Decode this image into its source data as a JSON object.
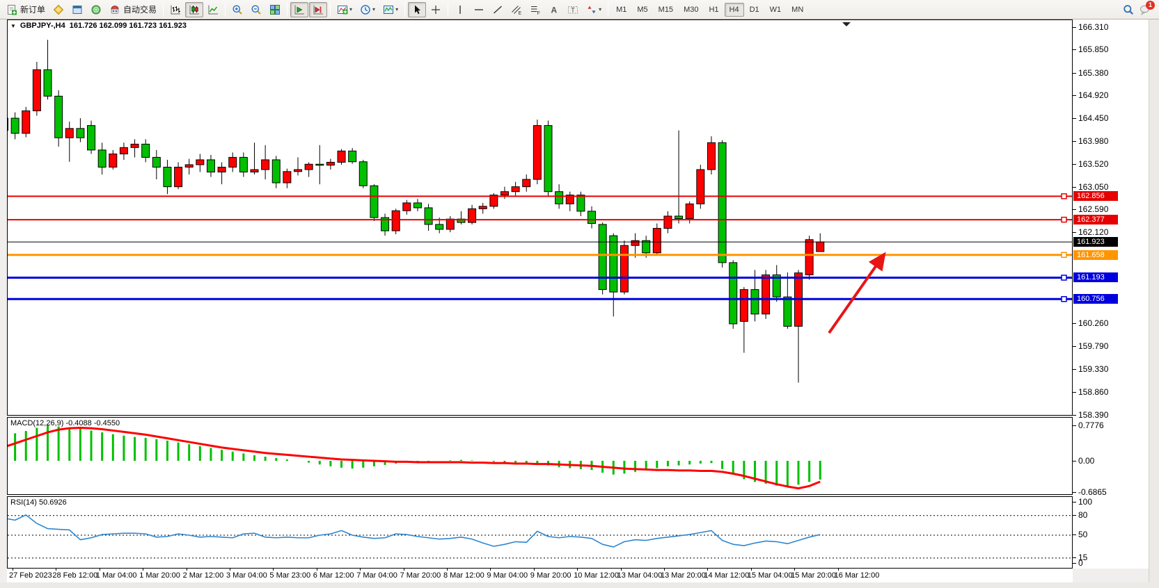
{
  "toolbar": {
    "new_order": "新订单",
    "auto_trading": "自动交易",
    "timeframes": [
      {
        "label": "M1"
      },
      {
        "label": "M5"
      },
      {
        "label": "M15"
      },
      {
        "label": "M30"
      },
      {
        "label": "H1"
      },
      {
        "label": "H4",
        "active": true
      },
      {
        "label": "D1"
      },
      {
        "label": "W1"
      },
      {
        "label": "MN"
      }
    ],
    "notification_badge": "1"
  },
  "header": {
    "symbol_period": "GBPJPY-,H4",
    "ohlc": "161.726 162.099 161.723 161.923"
  },
  "price_axis": {
    "ticks": [
      {
        "label": "166.310",
        "value": 166.31
      },
      {
        "label": "165.850",
        "value": 165.85
      },
      {
        "label": "165.380",
        "value": 165.38
      },
      {
        "label": "164.920",
        "value": 164.92
      },
      {
        "label": "164.450",
        "value": 164.45
      },
      {
        "label": "163.980",
        "value": 163.98
      },
      {
        "label": "163.520",
        "value": 163.52
      },
      {
        "label": "163.050",
        "value": 163.05
      },
      {
        "label": "162.590",
        "value": 162.59
      },
      {
        "label": "162.120",
        "value": 162.12
      },
      {
        "label": "160.260",
        "value": 160.26
      },
      {
        "label": "159.790",
        "value": 159.79
      },
      {
        "label": "159.330",
        "value": 159.33
      },
      {
        "label": "158.860",
        "value": 158.86
      },
      {
        "label": "158.390",
        "value": 158.39
      }
    ],
    "tags": [
      {
        "label": "162.856",
        "value": 162.856,
        "color": "#e60000"
      },
      {
        "label": "162.377",
        "value": 162.377,
        "color": "#e60000"
      },
      {
        "label": "161.923",
        "value": 161.923,
        "color": "#000000"
      },
      {
        "label": "161.658",
        "value": 161.658,
        "color": "#ff9500"
      },
      {
        "label": "161.193",
        "value": 161.193,
        "color": "#0000dd"
      },
      {
        "label": "160.756",
        "value": 160.756,
        "color": "#0000dd"
      }
    ]
  },
  "time_axis": {
    "labels": [
      "27 Feb 2023",
      "28 Feb 12:00",
      "1 Mar 04:00",
      "1 Mar 20:00",
      "2 Mar 12:00",
      "3 Mar 04:00",
      "5 Mar 23:00",
      "6 Mar 12:00",
      "7 Mar 04:00",
      "7 Mar 20:00",
      "8 Mar 12:00",
      "9 Mar 04:00",
      "9 Mar 20:00",
      "10 Mar 12:00",
      "13 Mar 04:00",
      "13 Mar 20:00",
      "14 Mar 12:00",
      "15 Mar 04:00",
      "15 Mar 20:00",
      "16 Mar 12:00"
    ]
  },
  "chart_data": [
    {
      "type": "candlestick",
      "title": "GBPJPY-,H4",
      "ohlc_current": {
        "open": 161.726,
        "high": 162.099,
        "low": 161.723,
        "close": 161.923
      },
      "ylim": [
        158.39,
        166.31
      ],
      "bull_color": "#ff0000",
      "bear_color": "#00c000",
      "candles": [
        [
          164.2,
          164.55,
          164.08,
          164.45
        ],
        [
          164.45,
          164.57,
          164.02,
          164.14
        ],
        [
          164.14,
          164.68,
          164.06,
          164.6
        ],
        [
          164.6,
          165.6,
          164.5,
          165.44
        ],
        [
          165.44,
          166.05,
          164.83,
          164.9
        ],
        [
          164.9,
          165.02,
          163.87,
          164.05
        ],
        [
          164.05,
          164.38,
          163.56,
          164.24
        ],
        [
          164.24,
          164.45,
          163.96,
          164.05
        ],
        [
          164.3,
          164.4,
          163.72,
          163.8
        ],
        [
          163.8,
          163.95,
          163.3,
          163.45
        ],
        [
          163.45,
          163.8,
          163.4,
          163.72
        ],
        [
          163.72,
          163.95,
          163.6,
          163.85
        ],
        [
          163.85,
          164.02,
          163.65,
          163.92
        ],
        [
          163.92,
          164.02,
          163.55,
          163.65
        ],
        [
          163.65,
          163.8,
          163.2,
          163.45
        ],
        [
          163.45,
          163.6,
          162.9,
          163.05
        ],
        [
          163.05,
          163.55,
          163.0,
          163.45
        ],
        [
          163.45,
          163.62,
          163.3,
          163.5
        ],
        [
          163.5,
          163.72,
          163.35,
          163.6
        ],
        [
          163.6,
          163.7,
          163.25,
          163.35
        ],
        [
          163.35,
          163.55,
          163.1,
          163.45
        ],
        [
          163.45,
          163.75,
          163.35,
          163.65
        ],
        [
          163.65,
          163.75,
          163.25,
          163.35
        ],
        [
          163.35,
          163.95,
          163.3,
          163.4
        ],
        [
          163.4,
          163.9,
          163.2,
          163.6
        ],
        [
          163.6,
          163.68,
          163.02,
          163.13
        ],
        [
          163.13,
          163.42,
          163.02,
          163.36
        ],
        [
          163.36,
          163.65,
          163.28,
          163.4
        ],
        [
          163.4,
          163.55,
          163.25,
          163.51
        ],
        [
          163.51,
          163.9,
          163.1,
          163.49
        ],
        [
          163.49,
          163.62,
          163.4,
          163.55
        ],
        [
          163.55,
          163.82,
          163.5,
          163.78
        ],
        [
          163.78,
          163.84,
          163.52,
          163.56
        ],
        [
          163.56,
          163.6,
          163.02,
          163.07
        ],
        [
          163.07,
          163.1,
          162.35,
          162.42
        ],
        [
          162.42,
          162.5,
          162.05,
          162.15
        ],
        [
          162.15,
          162.6,
          162.08,
          162.56
        ],
        [
          162.56,
          162.78,
          162.48,
          162.72
        ],
        [
          162.72,
          162.8,
          162.55,
          162.62
        ],
        [
          162.62,
          162.7,
          162.15,
          162.28
        ],
        [
          162.28,
          162.42,
          162.1,
          162.18
        ],
        [
          162.18,
          162.45,
          162.12,
          162.39
        ],
        [
          162.39,
          162.55,
          162.28,
          162.32
        ],
        [
          162.32,
          162.68,
          162.28,
          162.6
        ],
        [
          162.6,
          162.72,
          162.5,
          162.65
        ],
        [
          162.65,
          162.92,
          162.6,
          162.88
        ],
        [
          162.88,
          163.05,
          162.8,
          162.95
        ],
        [
          162.95,
          163.15,
          162.85,
          163.05
        ],
        [
          163.05,
          163.3,
          162.95,
          163.2
        ],
        [
          163.2,
          164.42,
          163.1,
          164.3
        ],
        [
          164.3,
          164.4,
          162.85,
          162.95
        ],
        [
          162.95,
          163.1,
          162.6,
          162.7
        ],
        [
          162.7,
          162.95,
          162.55,
          162.88
        ],
        [
          162.88,
          162.95,
          162.45,
          162.55
        ],
        [
          162.55,
          162.65,
          162.2,
          162.3
        ],
        [
          162.28,
          162.32,
          160.85,
          160.95
        ],
        [
          162.05,
          162.1,
          160.4,
          160.9
        ],
        [
          160.9,
          161.95,
          160.85,
          161.85
        ],
        [
          161.85,
          162.1,
          161.6,
          161.95
        ],
        [
          161.95,
          162.05,
          161.6,
          161.7
        ],
        [
          161.7,
          162.3,
          161.65,
          162.2
        ],
        [
          162.2,
          162.55,
          162.1,
          162.45
        ],
        [
          162.45,
          164.2,
          162.3,
          162.4
        ],
        [
          162.4,
          162.75,
          162.3,
          162.7
        ],
        [
          162.7,
          163.5,
          162.6,
          163.4
        ],
        [
          163.4,
          164.08,
          163.3,
          163.95
        ],
        [
          163.95,
          164.0,
          161.4,
          161.5
        ],
        [
          161.5,
          161.55,
          160.15,
          160.25
        ],
        [
          160.3,
          161.0,
          159.66,
          160.95
        ],
        [
          160.95,
          161.35,
          160.3,
          160.45
        ],
        [
          160.45,
          161.35,
          160.35,
          161.25
        ],
        [
          161.25,
          161.45,
          160.7,
          160.8
        ],
        [
          160.8,
          161.3,
          160.15,
          160.2
        ],
        [
          160.2,
          161.35,
          159.05,
          161.29
        ],
        [
          161.25,
          162.05,
          161.15,
          161.97
        ],
        [
          161.726,
          162.099,
          161.723,
          161.923
        ]
      ],
      "hlines": [
        {
          "value": 162.856,
          "color": "#e60000",
          "width": 2,
          "handle": true
        },
        {
          "value": 162.377,
          "color": "#e60000",
          "width": 2,
          "handle": true
        },
        {
          "value": 161.923,
          "color": "#000000",
          "width": 1,
          "handle": false
        },
        {
          "value": 161.658,
          "color": "#ff9500",
          "width": 3,
          "handle": true
        },
        {
          "value": 161.193,
          "color": "#0000dd",
          "width": 3,
          "handle": true
        },
        {
          "value": 160.756,
          "color": "#0000dd",
          "width": 3,
          "handle": true
        }
      ],
      "annotations": [
        {
          "type": "arrow",
          "from": [
            1190,
            479
          ],
          "to": [
            1267,
            369
          ],
          "color": "#e81515",
          "width": 4
        }
      ]
    },
    {
      "type": "bar",
      "name": "MACD",
      "label": "MACD(12,26,9) -0.4088 -0.4550",
      "main_value": -0.4088,
      "signal_value": -0.455,
      "ylim": [
        -0.6865,
        0.7776
      ],
      "ticks": [
        {
          "label": "0.7776",
          "value": 0.7776
        },
        {
          "label": "0.00",
          "value": 0
        },
        {
          "label": "-0.6865",
          "value": -0.6865
        }
      ],
      "histogram_color": "#00c000",
      "signal_color": "#ff0000",
      "values": [
        0.55,
        0.6,
        0.65,
        0.72,
        0.78,
        0.75,
        0.72,
        0.7,
        0.66,
        0.62,
        0.58,
        0.55,
        0.52,
        0.5,
        0.47,
        0.44,
        0.4,
        0.36,
        0.32,
        0.28,
        0.24,
        0.2,
        0.16,
        0.12,
        0.09,
        0.06,
        0.03,
        0.0,
        -0.04,
        -0.08,
        -0.12,
        -0.15,
        -0.17,
        -0.15,
        -0.12,
        -0.09,
        -0.06,
        -0.04,
        -0.02,
        -0.01,
        0.0,
        0.01,
        0.02,
        0.01,
        0.0,
        -0.02,
        -0.04,
        -0.06,
        -0.08,
        -0.06,
        -0.1,
        -0.14,
        -0.16,
        -0.18,
        -0.2,
        -0.26,
        -0.3,
        -0.28,
        -0.24,
        -0.2,
        -0.16,
        -0.12,
        -0.1,
        -0.08,
        -0.06,
        -0.05,
        -0.18,
        -0.3,
        -0.4,
        -0.46,
        -0.5,
        -0.54,
        -0.55,
        -0.52,
        -0.46,
        -0.4088
      ],
      "signal": [
        0.3,
        0.38,
        0.46,
        0.54,
        0.62,
        0.68,
        0.71,
        0.72,
        0.71,
        0.69,
        0.66,
        0.63,
        0.6,
        0.57,
        0.53,
        0.49,
        0.45,
        0.41,
        0.37,
        0.33,
        0.29,
        0.26,
        0.23,
        0.2,
        0.17,
        0.15,
        0.13,
        0.11,
        0.09,
        0.07,
        0.05,
        0.03,
        0.02,
        0.01,
        0.0,
        -0.01,
        -0.02,
        -0.02,
        -0.03,
        -0.03,
        -0.03,
        -0.03,
        -0.03,
        -0.04,
        -0.04,
        -0.05,
        -0.05,
        -0.06,
        -0.06,
        -0.07,
        -0.07,
        -0.08,
        -0.09,
        -0.1,
        -0.11,
        -0.13,
        -0.15,
        -0.17,
        -0.18,
        -0.19,
        -0.2,
        -0.2,
        -0.21,
        -0.21,
        -0.22,
        -0.22,
        -0.24,
        -0.28,
        -0.33,
        -0.39,
        -0.45,
        -0.51,
        -0.56,
        -0.6,
        -0.55,
        -0.455
      ]
    },
    {
      "type": "line",
      "name": "RSI",
      "label": "RSI(14) 50.6926",
      "value": 50.6926,
      "ylim": [
        0,
        100
      ],
      "levels": [
        80,
        50,
        15
      ],
      "ticks": [
        {
          "label": "100",
          "value": 100
        },
        {
          "label": "80",
          "value": 80
        },
        {
          "label": "50",
          "value": 50
        },
        {
          "label": "15",
          "value": 15
        },
        {
          "label": "0",
          "value": 0
        }
      ],
      "line_color": "#2e86d0",
      "values": [
        76,
        73,
        81,
        68,
        60,
        59,
        58,
        43,
        46,
        51,
        52,
        53,
        53,
        52,
        47,
        48,
        52,
        50,
        47,
        48,
        47,
        46,
        52,
        53,
        47,
        46,
        47,
        46,
        46,
        50,
        52,
        57,
        50,
        47,
        45,
        46,
        52,
        51,
        48,
        46,
        44,
        45,
        47,
        44,
        38,
        33,
        36,
        40,
        39,
        56,
        48,
        46,
        48,
        47,
        45,
        36,
        32,
        40,
        43,
        42,
        45,
        47,
        49,
        51,
        54,
        57,
        42,
        36,
        34,
        38,
        41,
        40,
        37,
        42,
        47,
        51
      ]
    }
  ]
}
